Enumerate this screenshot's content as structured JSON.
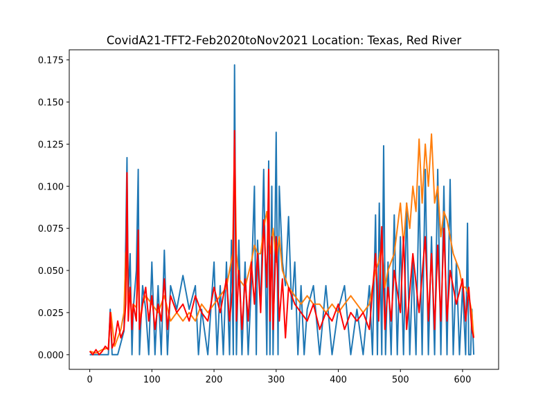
{
  "chart_data": {
    "type": "line",
    "title": "CovidA21-TFT2-Feb2020toNov2021 Location: Texas, Red River",
    "xlabel": "",
    "ylabel": "",
    "xlim": [
      -33,
      658
    ],
    "ylim": [
      -0.0087,
      0.181
    ],
    "xticks": [
      {
        "value": 0,
        "label": "0"
      },
      {
        "value": 100,
        "label": "100"
      },
      {
        "value": 200,
        "label": "200"
      },
      {
        "value": 300,
        "label": "300"
      },
      {
        "value": 400,
        "label": "400"
      },
      {
        "value": 500,
        "label": "500"
      },
      {
        "value": 600,
        "label": "600"
      }
    ],
    "yticks": [
      {
        "value": 0.0,
        "label": "0.000"
      },
      {
        "value": 0.025,
        "label": "0.025"
      },
      {
        "value": 0.05,
        "label": "0.050"
      },
      {
        "value": 0.075,
        "label": "0.075"
      },
      {
        "value": 0.1,
        "label": "0.100"
      },
      {
        "value": 0.125,
        "label": "0.125"
      },
      {
        "value": 0.15,
        "label": "0.150"
      },
      {
        "value": 0.175,
        "label": "0.175"
      }
    ],
    "grid": false,
    "legend": "none",
    "series": [
      {
        "color": "#1f77b4",
        "x": [
          0,
          10,
          20,
          30,
          33,
          36,
          45,
          55,
          58,
          60,
          62,
          65,
          68,
          70,
          75,
          78,
          80,
          85,
          90,
          95,
          100,
          105,
          110,
          115,
          120,
          125,
          130,
          140,
          150,
          160,
          170,
          175,
          180,
          190,
          200,
          205,
          210,
          215,
          220,
          225,
          228,
          231,
          233,
          236,
          240,
          245,
          250,
          255,
          260,
          265,
          268,
          270,
          275,
          280,
          285,
          288,
          290,
          293,
          295,
          298,
          300,
          303,
          305,
          310,
          315,
          320,
          325,
          330,
          335,
          340,
          345,
          350,
          360,
          370,
          380,
          390,
          400,
          410,
          420,
          430,
          440,
          450,
          455,
          460,
          463,
          466,
          470,
          473,
          476,
          480,
          485,
          490,
          495,
          500,
          505,
          510,
          515,
          520,
          525,
          530,
          535,
          540,
          545,
          550,
          555,
          560,
          565,
          570,
          575,
          580,
          585,
          590,
          595,
          600,
          605,
          608,
          610,
          613,
          615,
          618
        ],
        "y": [
          0.0,
          0.0,
          0.0,
          0.0,
          0.027,
          0.0,
          0.0,
          0.014,
          0.068,
          0.117,
          0.035,
          0.06,
          0.0,
          0.027,
          0.05,
          0.11,
          0.0,
          0.041,
          0.027,
          0.0,
          0.055,
          0.0,
          0.041,
          0.0,
          0.062,
          0.0,
          0.041,
          0.027,
          0.047,
          0.027,
          0.041,
          0.0,
          0.027,
          0.0,
          0.055,
          0.0,
          0.041,
          0.0,
          0.055,
          0.0,
          0.068,
          0.0,
          0.172,
          0.0,
          0.068,
          0.0,
          0.055,
          0.0,
          0.041,
          0.1,
          0.0,
          0.068,
          0.027,
          0.11,
          0.0,
          0.115,
          0.0,
          0.1,
          0.0,
          0.068,
          0.132,
          0.0,
          0.1,
          0.055,
          0.041,
          0.082,
          0.027,
          0.055,
          0.0,
          0.041,
          0.0,
          0.027,
          0.041,
          0.0,
          0.041,
          0.0,
          0.027,
          0.041,
          0.0,
          0.027,
          0.0,
          0.041,
          0.0,
          0.083,
          0.0,
          0.09,
          0.0,
          0.124,
          0.0,
          0.055,
          0.0,
          0.083,
          0.0,
          0.07,
          0.0,
          0.09,
          0.0,
          0.055,
          0.0,
          0.1,
          0.0,
          0.11,
          0.0,
          0.07,
          0.0,
          0.11,
          0.0,
          0.1,
          0.0,
          0.104,
          0.0,
          0.055,
          0.0,
          0.041,
          0.0,
          0.078,
          0.0,
          0.0,
          0.027,
          0.0
        ]
      },
      {
        "color": "#ff7f0e",
        "x": [
          0,
          10,
          20,
          30,
          34,
          40,
          50,
          55,
          58,
          60,
          62,
          65,
          68,
          70,
          75,
          78,
          80,
          85,
          90,
          100,
          110,
          120,
          130,
          140,
          150,
          160,
          170,
          180,
          190,
          200,
          210,
          220,
          230,
          233,
          236,
          240,
          250,
          260,
          265,
          270,
          275,
          280,
          285,
          290,
          295,
          300,
          305,
          310,
          320,
          330,
          340,
          350,
          360,
          370,
          380,
          390,
          400,
          410,
          420,
          430,
          440,
          450,
          460,
          465,
          470,
          475,
          480,
          490,
          500,
          505,
          510,
          515,
          520,
          525,
          530,
          535,
          540,
          545,
          550,
          555,
          560,
          565,
          570,
          575,
          580,
          585,
          590,
          595,
          600,
          605,
          610,
          615,
          618
        ],
        "y": [
          0.002,
          0.001,
          0.003,
          0.004,
          0.025,
          0.005,
          0.015,
          0.025,
          0.06,
          0.065,
          0.025,
          0.04,
          0.02,
          0.03,
          0.028,
          0.05,
          0.02,
          0.03,
          0.035,
          0.03,
          0.025,
          0.035,
          0.02,
          0.025,
          0.02,
          0.025,
          0.02,
          0.03,
          0.025,
          0.03,
          0.035,
          0.04,
          0.06,
          0.128,
          0.06,
          0.045,
          0.04,
          0.055,
          0.065,
          0.06,
          0.06,
          0.075,
          0.085,
          0.06,
          0.075,
          0.055,
          0.07,
          0.05,
          0.04,
          0.035,
          0.03,
          0.035,
          0.03,
          0.03,
          0.025,
          0.03,
          0.025,
          0.03,
          0.035,
          0.03,
          0.025,
          0.03,
          0.05,
          0.055,
          0.065,
          0.04,
          0.05,
          0.06,
          0.09,
          0.065,
          0.09,
          0.075,
          0.1,
          0.085,
          0.128,
          0.09,
          0.125,
          0.1,
          0.131,
          0.09,
          0.1,
          0.07,
          0.085,
          0.08,
          0.07,
          0.06,
          0.055,
          0.05,
          0.04,
          0.04,
          0.035,
          0.025,
          0.01
        ]
      },
      {
        "color": "#ff0000",
        "x": [
          0,
          5,
          10,
          15,
          20,
          25,
          30,
          33,
          36,
          40,
          45,
          50,
          55,
          58,
          60,
          62,
          65,
          68,
          70,
          75,
          78,
          80,
          85,
          90,
          95,
          100,
          105,
          110,
          115,
          120,
          125,
          130,
          140,
          150,
          160,
          170,
          180,
          190,
          200,
          210,
          220,
          225,
          230,
          233,
          236,
          240,
          245,
          250,
          255,
          260,
          265,
          270,
          275,
          280,
          285,
          288,
          290,
          293,
          295,
          300,
          305,
          310,
          315,
          320,
          330,
          340,
          350,
          360,
          370,
          380,
          390,
          400,
          410,
          420,
          430,
          440,
          450,
          460,
          465,
          470,
          475,
          480,
          485,
          490,
          500,
          505,
          510,
          520,
          530,
          540,
          545,
          550,
          555,
          560,
          565,
          570,
          575,
          580,
          590,
          600,
          605,
          610,
          615,
          618
        ],
        "y": [
          0.002,
          0.0,
          0.003,
          0.0,
          0.002,
          0.005,
          0.003,
          0.025,
          0.004,
          0.008,
          0.02,
          0.01,
          0.015,
          0.03,
          0.108,
          0.02,
          0.04,
          0.015,
          0.03,
          0.02,
          0.074,
          0.015,
          0.03,
          0.04,
          0.02,
          0.035,
          0.015,
          0.03,
          0.02,
          0.045,
          0.015,
          0.035,
          0.025,
          0.03,
          0.02,
          0.035,
          0.025,
          0.02,
          0.04,
          0.025,
          0.045,
          0.02,
          0.04,
          0.133,
          0.02,
          0.05,
          0.015,
          0.045,
          0.02,
          0.055,
          0.03,
          0.06,
          0.025,
          0.08,
          0.04,
          0.11,
          0.02,
          0.07,
          0.015,
          0.07,
          0.02,
          0.045,
          0.01,
          0.04,
          0.03,
          0.025,
          0.02,
          0.03,
          0.015,
          0.025,
          0.02,
          0.03,
          0.015,
          0.025,
          0.02,
          0.025,
          0.015,
          0.06,
          0.02,
          0.076,
          0.015,
          0.04,
          0.02,
          0.05,
          0.025,
          0.07,
          0.015,
          0.06,
          0.025,
          0.07,
          0.02,
          0.06,
          0.015,
          0.065,
          0.02,
          0.075,
          0.02,
          0.05,
          0.03,
          0.045,
          0.02,
          0.04,
          0.015,
          0.01
        ]
      }
    ]
  }
}
